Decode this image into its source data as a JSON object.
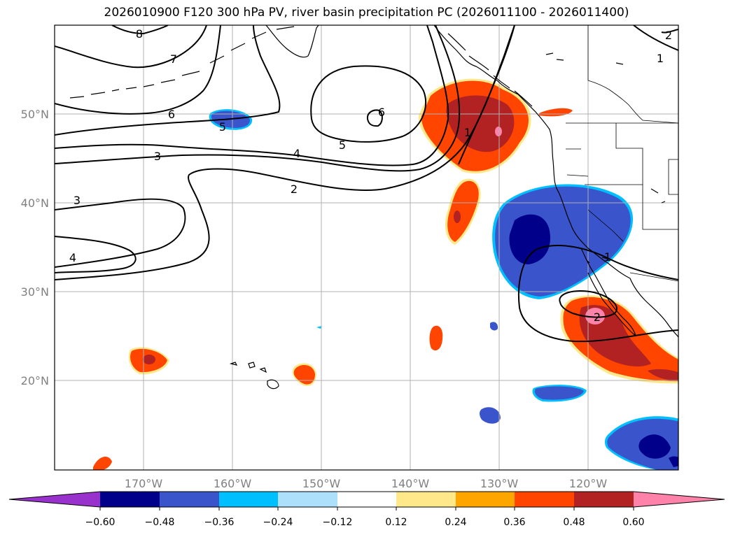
{
  "title": "2026010900 F120 300 hPa PV, river basin precipitation PC (2026011100 - 2026011400)",
  "lat_ticks": [
    "50°N",
    "40°N",
    "30°N",
    "20°N"
  ],
  "lon_ticks": [
    "170°W",
    "160°W",
    "150°W",
    "140°W",
    "130°W",
    "120°W"
  ],
  "contour_labels": [
    "8",
    "7",
    "6",
    "5",
    "3",
    "3",
    "4",
    "2",
    "4",
    "5",
    "6",
    "1",
    "1",
    "2",
    "1",
    "2"
  ],
  "colorbar": {
    "colors": [
      "#9932CC",
      "#00008B",
      "#3A55CC",
      "#00BFFF",
      "#ADE0FA",
      "#FFFFFF",
      "#FFE88A",
      "#FFA500",
      "#FF4500",
      "#B22222",
      "#FF82AB"
    ],
    "labels": [
      "−0.60",
      "−0.48",
      "−0.36",
      "−0.24",
      "−0.12",
      "0.12",
      "0.24",
      "0.36",
      "0.48",
      "0.60"
    ]
  }
}
